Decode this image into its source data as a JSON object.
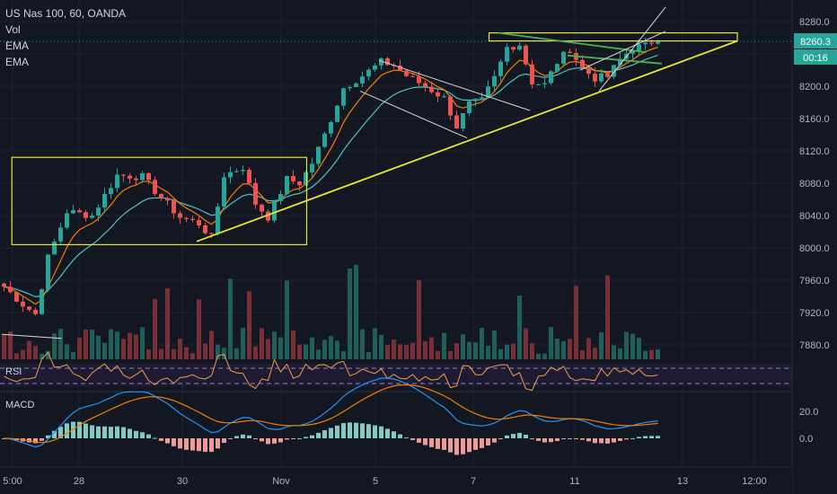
{
  "legend": {
    "symbol": "US Nas 100, 60, OANDA",
    "vol": "Vol",
    "ema1": "EMA",
    "ema2": "EMA"
  },
  "badges": {
    "price": "8260.3",
    "countdown": "00:16",
    "price_bg": "#26a69a"
  },
  "panes": {
    "rsi": "RSI",
    "macd": "MACD"
  },
  "colors": {
    "up": "#26a69a",
    "down": "#ef5350",
    "vol_up": "#1e5f59",
    "vol_down": "#7a2e36",
    "ema_fast": "#f57c00",
    "ema_slow": "#4fc3c0",
    "yellow": "#e6e632",
    "green": "#4caf50",
    "white": "#d8d8d8",
    "macd_line": "#2196f3",
    "signal_line": "#f57c00",
    "rsi_line": "#f0a040"
  },
  "chart_data": {
    "type": "candlestick",
    "price_axis": {
      "ticks": [
        8280,
        8240,
        8200,
        8160,
        8120,
        8080,
        8040,
        8000,
        7960,
        7920,
        7880
      ],
      "labels": [
        "8280.0",
        "8240.0",
        "8200.0",
        "8160.0",
        "8120.0",
        "8080.0",
        "8040.0",
        "8000.0",
        "7960.0",
        "7920.0",
        "7880.0"
      ],
      "range": [
        7860,
        8300
      ]
    },
    "macd_axis": {
      "ticks": [
        20,
        0
      ],
      "labels": [
        "20.0",
        "0.0"
      ],
      "range": [
        -20,
        32
      ]
    },
    "time_axis": {
      "labels": [
        "5:00",
        "28",
        "30",
        "Nov",
        "5",
        "7",
        "11",
        "13",
        "12:00"
      ]
    },
    "key_prices": [
      {
        "t": 0,
        "p": 7952
      },
      {
        "t": 3,
        "p": 7930
      },
      {
        "t": 5,
        "p": 7918
      },
      {
        "t": 7,
        "p": 7988
      },
      {
        "t": 10,
        "p": 8045
      },
      {
        "t": 14,
        "p": 8040
      },
      {
        "t": 18,
        "p": 8090
      },
      {
        "t": 22,
        "p": 8088
      },
      {
        "t": 25,
        "p": 8062
      },
      {
        "t": 28,
        "p": 8038
      },
      {
        "t": 31,
        "p": 8030
      },
      {
        "t": 33,
        "p": 8013
      },
      {
        "t": 35,
        "p": 8090
      },
      {
        "t": 38,
        "p": 8100
      },
      {
        "t": 40,
        "p": 8055
      },
      {
        "t": 42,
        "p": 8038
      },
      {
        "t": 45,
        "p": 8085
      },
      {
        "t": 47,
        "p": 8080
      },
      {
        "t": 49,
        "p": 8105
      },
      {
        "t": 51,
        "p": 8140
      },
      {
        "t": 54,
        "p": 8198
      },
      {
        "t": 57,
        "p": 8213
      },
      {
        "t": 60,
        "p": 8230
      },
      {
        "t": 62,
        "p": 8226
      },
      {
        "t": 64,
        "p": 8213
      },
      {
        "t": 67,
        "p": 8200
      },
      {
        "t": 70,
        "p": 8185
      },
      {
        "t": 72,
        "p": 8150
      },
      {
        "t": 74,
        "p": 8178
      },
      {
        "t": 76,
        "p": 8182
      },
      {
        "t": 78,
        "p": 8210
      },
      {
        "t": 80,
        "p": 8248
      },
      {
        "t": 82,
        "p": 8252
      },
      {
        "t": 84,
        "p": 8205
      },
      {
        "t": 86,
        "p": 8202
      },
      {
        "t": 88,
        "p": 8230
      },
      {
        "t": 90,
        "p": 8246
      },
      {
        "t": 92,
        "p": 8222
      },
      {
        "t": 94,
        "p": 8210
      },
      {
        "t": 96,
        "p": 8212
      },
      {
        "t": 98,
        "p": 8233
      },
      {
        "t": 100,
        "p": 8248
      },
      {
        "t": 102,
        "p": 8250
      },
      {
        "t": 104,
        "p": 8260
      }
    ],
    "rsi_range": [
      30,
      70
    ],
    "overlays": [
      {
        "kind": "rect",
        "color": "yellow",
        "from": {
          "t": 1.6,
          "p": 8112
        },
        "to": {
          "t": 48.5,
          "p": 8004
        }
      },
      {
        "kind": "rect",
        "color": "yellow",
        "from": {
          "t": 77.5,
          "p": 8266
        },
        "to": {
          "t": 117,
          "p": 8256
        }
      },
      {
        "kind": "line",
        "color": "yellow",
        "from": {
          "t": 31,
          "p": 8008
        },
        "to": {
          "t": 117,
          "p": 8256
        }
      },
      {
        "kind": "line",
        "color": "green",
        "from": {
          "t": 79,
          "p": 8266
        },
        "to": {
          "t": 102.5,
          "p": 8242
        }
      },
      {
        "kind": "line",
        "color": "green",
        "from": {
          "t": 90,
          "p": 8238
        },
        "to": {
          "t": 105,
          "p": 8228
        }
      },
      {
        "kind": "line",
        "color": "white",
        "from": {
          "t": 60,
          "p": 8232
        },
        "to": {
          "t": 84,
          "p": 8170
        }
      },
      {
        "kind": "line",
        "color": "white",
        "from": {
          "t": 57,
          "p": 8194
        },
        "to": {
          "t": 74,
          "p": 8136
        }
      },
      {
        "kind": "line",
        "color": "white",
        "from": {
          "t": 95,
          "p": 8194
        },
        "to": {
          "t": 105.6,
          "p": 8298
        }
      },
      {
        "kind": "line",
        "color": "white",
        "from": {
          "t": 92,
          "p": 8220
        },
        "to": {
          "t": 105.6,
          "p": 8268
        }
      },
      {
        "kind": "line",
        "color": "white",
        "from": {
          "t": 0,
          "p": 7893
        },
        "to": {
          "t": 9.5,
          "p": 7888
        }
      }
    ]
  }
}
